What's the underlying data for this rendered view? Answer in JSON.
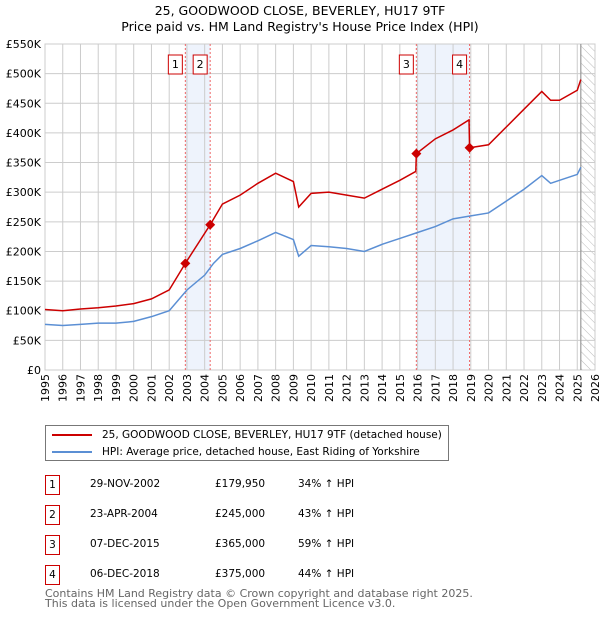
{
  "chart_data": {
    "type": "line",
    "title": "25, GOODWOOD CLOSE, BEVERLEY, HU17 9TF",
    "subtitle": "Price paid vs. HM Land Registry's House Price Index (HPI)",
    "xlim": [
      1995,
      2026
    ],
    "ylim": [
      0,
      550000
    ],
    "y_ticks": [
      0,
      50000,
      100000,
      150000,
      200000,
      250000,
      300000,
      350000,
      400000,
      450000,
      500000,
      550000
    ],
    "y_tick_labels": [
      "£0",
      "£50K",
      "£100K",
      "£150K",
      "£200K",
      "£250K",
      "£300K",
      "£350K",
      "£400K",
      "£450K",
      "£500K",
      "£550K"
    ],
    "x_ticks": [
      "1995",
      "1996",
      "1997",
      "1998",
      "1999",
      "2000",
      "2001",
      "2002",
      "2003",
      "2004",
      "2005",
      "2006",
      "2007",
      "2008",
      "2009",
      "2010",
      "2011",
      "2012",
      "2013",
      "2014",
      "2015",
      "2016",
      "2017",
      "2018",
      "2019",
      "2020",
      "2021",
      "2022",
      "2023",
      "2024",
      "2025",
      "2026"
    ],
    "grid": true,
    "series": [
      {
        "name": "25, GOODWOOD CLOSE, BEVERLEY, HU17 9TF (detached house)",
        "color": "#cc0000",
        "x": [
          1995,
          1996,
          1997,
          1998,
          1999,
          2000,
          2001,
          2002,
          2002.91,
          2004.31,
          2005,
          2006,
          2007,
          2008,
          2009,
          2009.3,
          2010,
          2011,
          2012,
          2013,
          2014,
          2015,
          2015.9,
          2015.93,
          2017,
          2018,
          2018.9,
          2018.93,
          2020,
          2021,
          2022,
          2023,
          2023.5,
          2024,
          2025,
          2025.2
        ],
        "y": [
          102000,
          100000,
          103000,
          105000,
          108000,
          112000,
          120000,
          135000,
          179950,
          245000,
          280000,
          295000,
          315000,
          332000,
          318000,
          275000,
          298000,
          300000,
          295000,
          290000,
          305000,
          320000,
          335000,
          365000,
          390000,
          405000,
          422000,
          375000,
          380000,
          410000,
          440000,
          470000,
          455000,
          455000,
          472000,
          490000
        ]
      },
      {
        "name": "HPI: Average price, detached house, East Riding of Yorkshire",
        "color": "#5b8fd4",
        "x": [
          1995,
          1996,
          1997,
          1998,
          1999,
          2000,
          2001,
          2002,
          2003,
          2004,
          2004.5,
          2005,
          2006,
          2007,
          2008,
          2009,
          2009.3,
          2010,
          2011,
          2012,
          2013,
          2014,
          2015,
          2016,
          2017,
          2018,
          2019,
          2020,
          2021,
          2022,
          2023,
          2023.5,
          2024,
          2025,
          2025.2
        ],
        "y": [
          77000,
          75000,
          77000,
          79000,
          79000,
          82000,
          90000,
          100000,
          135000,
          160000,
          180000,
          195000,
          205000,
          218000,
          232000,
          220000,
          192000,
          210000,
          208000,
          205000,
          200000,
          212000,
          222000,
          232000,
          242000,
          255000,
          260000,
          265000,
          285000,
          305000,
          328000,
          315000,
          320000,
          330000,
          342000
        ]
      }
    ],
    "sales": [
      {
        "id": "1",
        "x": 2002.91,
        "date": "29-NOV-2002",
        "price_value": 179950,
        "price": "£179,950",
        "hpi": "34% ↑ HPI"
      },
      {
        "id": "2",
        "x": 2004.31,
        "date": "23-APR-2004",
        "price_value": 245000,
        "price": "£245,000",
        "hpi": "43% ↑ HPI"
      },
      {
        "id": "3",
        "x": 2015.93,
        "date": "07-DEC-2015",
        "price_value": 365000,
        "price": "£365,000",
        "hpi": "59% ↑ HPI"
      },
      {
        "id": "4",
        "x": 2018.93,
        "date": "06-DEC-2018",
        "price_value": 375000,
        "price": "£375,000",
        "hpi": "44% ↑ HPI"
      }
    ],
    "shaded_periods": [
      [
        2002.91,
        2004.31
      ],
      [
        2015.93,
        2018.93
      ]
    ],
    "forecast_start": 2025.2,
    "legend_placement": "below"
  },
  "footer": [
    "Contains HM Land Registry data © Crown copyright and database right 2025.",
    "This data is licensed under the Open Government Licence v3.0."
  ]
}
